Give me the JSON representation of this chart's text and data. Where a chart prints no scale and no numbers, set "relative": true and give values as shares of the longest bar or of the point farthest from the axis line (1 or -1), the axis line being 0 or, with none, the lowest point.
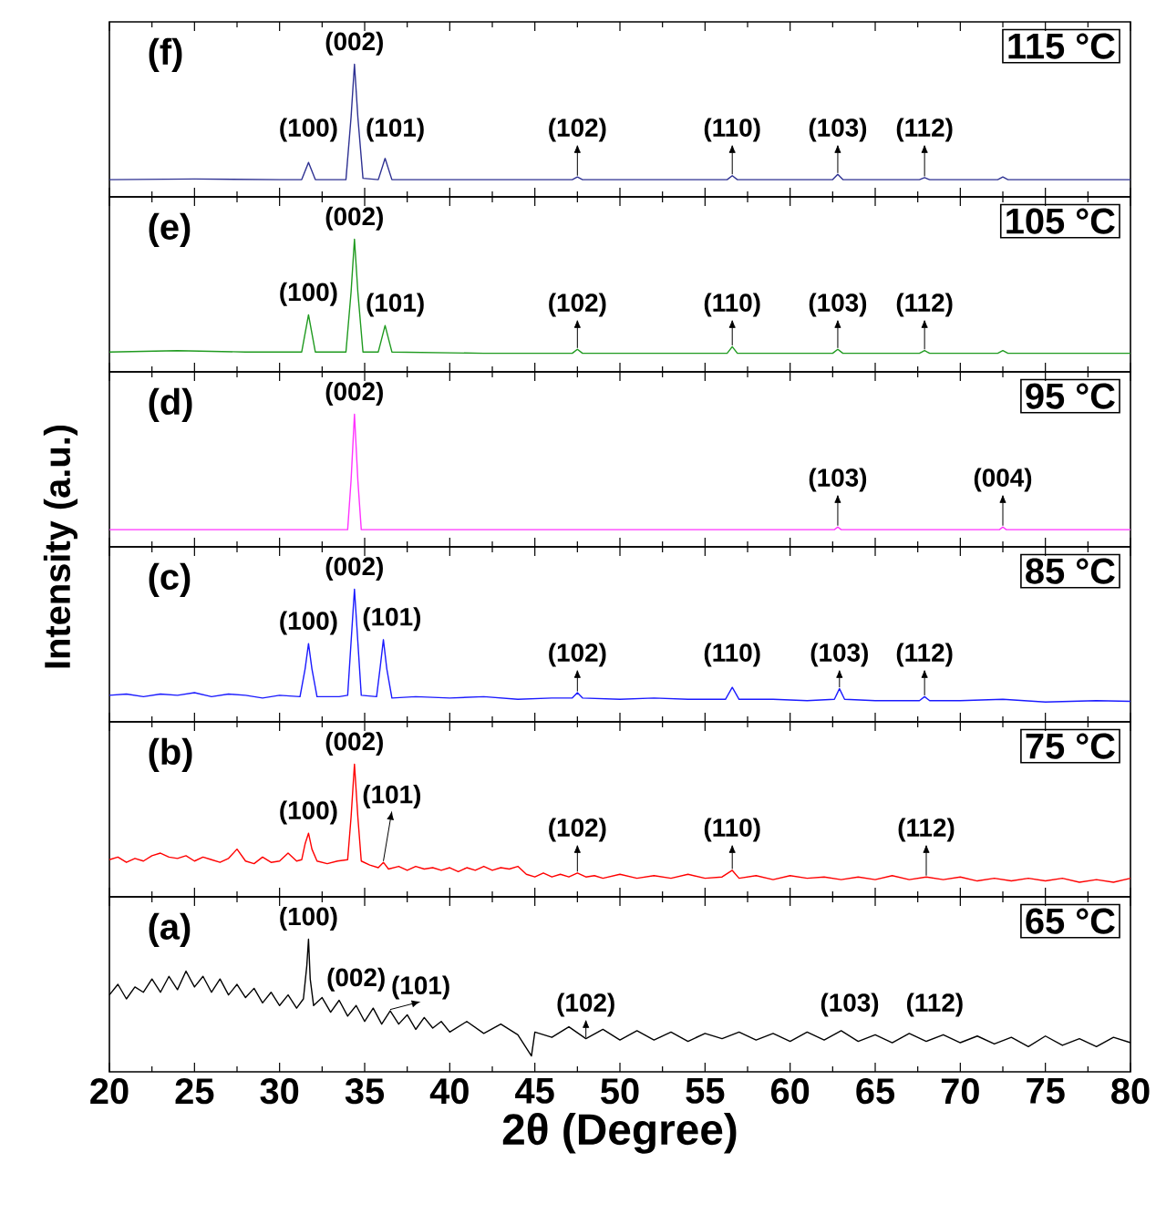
{
  "chart_data": [
    {
      "type": "line",
      "relative": true,
      "xlim": [
        20,
        80
      ],
      "xticks": [
        20,
        25,
        30,
        35,
        40,
        45,
        50,
        55,
        60,
        65,
        70,
        75,
        80
      ],
      "tick_labels": false,
      "x": [
        20,
        25,
        30,
        31.3,
        31.7,
        32.1,
        33.9,
        34.2,
        34.4,
        34.6,
        34.9,
        35.8,
        36.2,
        36.6,
        40,
        47.2,
        47.5,
        47.8,
        56.3,
        56.6,
        56.9,
        62.5,
        62.8,
        63.1,
        67.6,
        67.9,
        68.2,
        72.2,
        72.5,
        72.8,
        80
      ],
      "series": [
        {
          "color": "#2e3192",
          "values": [
            0.13,
            0.135,
            0.13,
            0.13,
            0.26,
            0.13,
            0.13,
            0.6,
            1,
            0.6,
            0.14,
            0.13,
            0.29,
            0.13,
            0.13,
            0.13,
            0.15,
            0.13,
            0.13,
            0.16,
            0.13,
            0.13,
            0.17,
            0.13,
            0.13,
            0.145,
            0.13,
            0.13,
            0.15,
            0.13,
            0.13
          ]
        }
      ],
      "annotations": [
        "(f)",
        "115 °C",
        {
          "text": "(100)",
          "x": 31.7,
          "y": 0.26
        },
        {
          "text": "(002)",
          "x": 34.4,
          "y": 1
        },
        {
          "text": "(101)",
          "x": 36.2,
          "y": 0.29
        },
        {
          "text": "(102)",
          "x": 47.5,
          "y": 0.15
        },
        {
          "text": "(110)",
          "x": 56.6,
          "y": 0.16
        },
        {
          "text": "(103)",
          "x": 62.8,
          "y": 0.17
        },
        {
          "text": "(112)",
          "x": 67.9,
          "y": 0.145
        }
      ]
    },
    {
      "type": "line",
      "relative": true,
      "xlim": [
        20,
        80
      ],
      "xticks": [
        20,
        25,
        30,
        35,
        40,
        45,
        50,
        55,
        60,
        65,
        70,
        75,
        80
      ],
      "tick_labels": false,
      "x": [
        20,
        24,
        28,
        31.3,
        31.7,
        32.1,
        33.9,
        34.2,
        34.4,
        34.6,
        34.9,
        35.8,
        36.2,
        36.6,
        42,
        47.2,
        47.5,
        47.8,
        52,
        56.3,
        56.6,
        56.9,
        62.5,
        62.8,
        63.1,
        67.6,
        67.9,
        68.2,
        72.2,
        72.5,
        72.8,
        80
      ],
      "series": [
        {
          "color": "#1f9a1f",
          "values": [
            0.15,
            0.16,
            0.15,
            0.15,
            0.43,
            0.15,
            0.15,
            0.6,
            1,
            0.6,
            0.15,
            0.15,
            0.35,
            0.15,
            0.14,
            0.14,
            0.17,
            0.14,
            0.14,
            0.14,
            0.19,
            0.14,
            0.14,
            0.17,
            0.14,
            0.14,
            0.16,
            0.14,
            0.14,
            0.16,
            0.14,
            0.14
          ]
        }
      ],
      "annotations": [
        "(e)",
        "105 °C",
        {
          "text": "(100)",
          "x": 31.7,
          "y": 0.43
        },
        {
          "text": "(002)",
          "x": 34.4,
          "y": 1
        },
        {
          "text": "(101)",
          "x": 36.2,
          "y": 0.35
        },
        {
          "text": "(102)",
          "x": 47.5,
          "y": 0.17
        },
        {
          "text": "(110)",
          "x": 56.6,
          "y": 0.19
        },
        {
          "text": "(103)",
          "x": 62.8,
          "y": 0.17
        },
        {
          "text": "(112)",
          "x": 67.9,
          "y": 0.16
        }
      ]
    },
    {
      "type": "line",
      "relative": true,
      "xlim": [
        20,
        80
      ],
      "xticks": [
        20,
        25,
        30,
        35,
        40,
        45,
        50,
        55,
        60,
        65,
        70,
        75,
        80
      ],
      "tick_labels": false,
      "ylabel": "Intensity (a.u.)",
      "x": [
        20,
        34.0,
        34.2,
        34.4,
        34.6,
        34.8,
        62.6,
        62.8,
        63.0,
        72.3,
        72.5,
        72.7,
        80
      ],
      "series": [
        {
          "color": "#ff33ff",
          "values": [
            0.13,
            0.13,
            0.5,
            1,
            0.5,
            0.13,
            0.13,
            0.15,
            0.13,
            0.13,
            0.15,
            0.13,
            0.13
          ]
        }
      ],
      "annotations": [
        "(d)",
        "95  °C",
        {
          "text": "(002)",
          "x": 34.4,
          "y": 1
        },
        {
          "text": "(103)",
          "x": 62.8,
          "y": 0.15
        },
        {
          "text": "(004)",
          "x": 72.5,
          "y": 0.15
        }
      ]
    },
    {
      "type": "line",
      "relative": true,
      "xlim": [
        20,
        80
      ],
      "xticks": [
        20,
        25,
        30,
        35,
        40,
        45,
        50,
        55,
        60,
        65,
        70,
        75,
        80
      ],
      "tick_labels": false,
      "x": [
        20,
        21,
        22,
        23,
        24,
        25,
        26,
        27,
        28,
        29,
        30,
        31.2,
        31.5,
        31.7,
        31.9,
        32.2,
        33.5,
        34.0,
        34.2,
        34.4,
        34.6,
        34.8,
        35.7,
        35.9,
        36.1,
        36.3,
        36.6,
        38,
        40,
        42,
        44,
        46,
        47.2,
        47.5,
        47.8,
        50,
        52,
        54,
        56.2,
        56.6,
        57,
        59,
        61,
        62.6,
        62.9,
        63.2,
        65,
        67.6,
        67.9,
        68.2,
        70,
        72.5,
        75,
        78,
        80
      ],
      "series": [
        {
          "color": "#1a1aff",
          "values": [
            0.2,
            0.21,
            0.19,
            0.21,
            0.2,
            0.22,
            0.19,
            0.21,
            0.2,
            0.18,
            0.2,
            0.19,
            0.4,
            0.59,
            0.4,
            0.19,
            0.19,
            0.2,
            0.6,
            1,
            0.6,
            0.2,
            0.19,
            0.4,
            0.62,
            0.4,
            0.18,
            0.19,
            0.18,
            0.19,
            0.17,
            0.18,
            0.18,
            0.22,
            0.18,
            0.17,
            0.18,
            0.17,
            0.17,
            0.26,
            0.17,
            0.17,
            0.16,
            0.17,
            0.25,
            0.17,
            0.16,
            0.16,
            0.19,
            0.16,
            0.16,
            0.17,
            0.15,
            0.16,
            0.155
          ]
        }
      ],
      "annotations": [
        "(c)",
        "85  °C",
        {
          "text": "(100)",
          "x": 31.7,
          "y": 0.59
        },
        {
          "text": "(002)",
          "x": 34.4,
          "y": 1
        },
        {
          "text": "(101)",
          "x": 36.1,
          "y": 0.62
        },
        {
          "text": "(102)",
          "x": 47.5,
          "y": 0.22
        },
        {
          "text": "(110)",
          "x": 56.6,
          "y": 0.26
        },
        {
          "text": "(103)",
          "x": 62.9,
          "y": 0.25
        },
        {
          "text": "(112)",
          "x": 67.9,
          "y": 0.19
        }
      ]
    },
    {
      "type": "line",
      "relative": true,
      "xlim": [
        20,
        80
      ],
      "xticks": [
        20,
        25,
        30,
        35,
        40,
        45,
        50,
        55,
        60,
        65,
        70,
        75,
        80
      ],
      "tick_labels": false,
      "x": [
        20,
        20.5,
        21,
        21.5,
        22,
        22.5,
        23,
        23.5,
        24,
        24.5,
        25,
        25.5,
        26,
        26.5,
        27,
        27.5,
        28,
        28.5,
        29,
        29.5,
        30,
        30.5,
        31,
        31.3,
        31.5,
        31.7,
        31.9,
        32.2,
        32.8,
        33.4,
        34.0,
        34.2,
        34.4,
        34.6,
        34.8,
        35.3,
        35.8,
        36.1,
        36.4,
        37,
        37.5,
        38,
        38.5,
        39,
        39.5,
        40,
        40.5,
        41,
        41.5,
        42,
        42.5,
        43,
        43.5,
        44,
        44.5,
        45,
        45.5,
        46,
        46.5,
        47,
        47.5,
        48,
        48.5,
        49,
        50,
        51,
        52,
        53,
        54,
        55,
        56,
        56.6,
        57,
        58,
        59,
        60,
        61,
        62,
        63,
        64,
        65,
        66,
        67,
        68,
        69,
        70,
        71,
        72,
        73,
        74,
        75,
        76,
        77,
        78,
        79,
        80
      ],
      "series": [
        {
          "color": "#ff0000",
          "values": [
            0.28,
            0.3,
            0.26,
            0.29,
            0.27,
            0.31,
            0.33,
            0.3,
            0.29,
            0.31,
            0.27,
            0.3,
            0.28,
            0.26,
            0.29,
            0.36,
            0.27,
            0.25,
            0.3,
            0.26,
            0.27,
            0.33,
            0.27,
            0.28,
            0.4,
            0.48,
            0.36,
            0.27,
            0.25,
            0.27,
            0.28,
            0.6,
            1,
            0.6,
            0.27,
            0.24,
            0.22,
            0.26,
            0.21,
            0.23,
            0.2,
            0.23,
            0.21,
            0.22,
            0.2,
            0.22,
            0.19,
            0.22,
            0.2,
            0.23,
            0.2,
            0.22,
            0.21,
            0.23,
            0.17,
            0.15,
            0.18,
            0.15,
            0.17,
            0.15,
            0.18,
            0.15,
            0.16,
            0.14,
            0.17,
            0.14,
            0.16,
            0.14,
            0.17,
            0.14,
            0.15,
            0.2,
            0.14,
            0.16,
            0.13,
            0.16,
            0.14,
            0.15,
            0.13,
            0.15,
            0.13,
            0.16,
            0.13,
            0.15,
            0.13,
            0.15,
            0.12,
            0.14,
            0.12,
            0.14,
            0.12,
            0.14,
            0.11,
            0.13,
            0.11,
            0.14
          ]
        }
      ],
      "annotations": [
        "(b)",
        "75  °C",
        {
          "text": "(100)",
          "x": 31.7,
          "y": 0.48
        },
        {
          "text": "(002)",
          "x": 34.4,
          "y": 1
        },
        {
          "text": "(101)",
          "x": 36.1,
          "y": 0.26
        },
        {
          "text": "(102)",
          "x": 47.5,
          "y": 0.18
        },
        {
          "text": "(110)",
          "x": 56.6,
          "y": 0.2
        },
        {
          "text": "(112)",
          "x": 68,
          "y": 0.15
        }
      ]
    },
    {
      "type": "line",
      "relative": true,
      "xlim": [
        20,
        80
      ],
      "xticks": [
        20,
        25,
        30,
        35,
        40,
        45,
        50,
        55,
        60,
        65,
        70,
        75,
        80
      ],
      "tick_labels": "x",
      "xlabel": "2θ (Degree)",
      "x": [
        20,
        20.5,
        21,
        21.5,
        22,
        22.5,
        23,
        23.5,
        24,
        24.5,
        25,
        25.5,
        26,
        26.5,
        27,
        27.5,
        28,
        28.5,
        29,
        29.5,
        30,
        30.5,
        31,
        31.4,
        31.6,
        31.7,
        31.8,
        32,
        32.5,
        33,
        33.5,
        34,
        34.5,
        35,
        35.5,
        36,
        36.5,
        37,
        37.5,
        38,
        38.5,
        39,
        39.5,
        40,
        41,
        42,
        43,
        44,
        44.8,
        45,
        46,
        47,
        48,
        49,
        50,
        51,
        52,
        53,
        54,
        55,
        56,
        57,
        58,
        59,
        60,
        61,
        62,
        63,
        64,
        65,
        66,
        67,
        68,
        69,
        70,
        71,
        72,
        73,
        74,
        75,
        76,
        77,
        78,
        79,
        80
      ],
      "series": [
        {
          "color": "#000000",
          "values": [
            0.58,
            0.66,
            0.55,
            0.64,
            0.6,
            0.7,
            0.6,
            0.72,
            0.62,
            0.76,
            0.64,
            0.72,
            0.6,
            0.7,
            0.58,
            0.66,
            0.56,
            0.63,
            0.52,
            0.6,
            0.5,
            0.58,
            0.48,
            0.55,
            0.8,
            1,
            0.7,
            0.5,
            0.56,
            0.45,
            0.54,
            0.42,
            0.5,
            0.38,
            0.48,
            0.36,
            0.46,
            0.36,
            0.43,
            0.32,
            0.41,
            0.33,
            0.38,
            0.3,
            0.38,
            0.29,
            0.36,
            0.28,
            0.12,
            0.3,
            0.26,
            0.34,
            0.25,
            0.32,
            0.24,
            0.31,
            0.24,
            0.3,
            0.23,
            0.29,
            0.25,
            0.3,
            0.24,
            0.29,
            0.23,
            0.3,
            0.24,
            0.31,
            0.23,
            0.28,
            0.22,
            0.29,
            0.23,
            0.28,
            0.22,
            0.27,
            0.21,
            0.26,
            0.19,
            0.27,
            0.2,
            0.25,
            0.19,
            0.26,
            0.22
          ]
        }
      ],
      "annotations": [
        "(a)",
        "65  °C",
        {
          "text": "(100)",
          "x": 31.7,
          "y": 1
        },
        {
          "text": "(002)",
          "x": 34.5,
          "y": 0.5
        },
        {
          "text": "(101)",
          "x": 36.5,
          "y": 0.46
        },
        {
          "text": "(102)",
          "x": 48,
          "y": 0.25
        },
        {
          "text": "(103)",
          "x": 63.5,
          "y": 0.31
        },
        {
          "text": "(112)",
          "x": 68.5,
          "y": 0.28
        }
      ]
    }
  ]
}
